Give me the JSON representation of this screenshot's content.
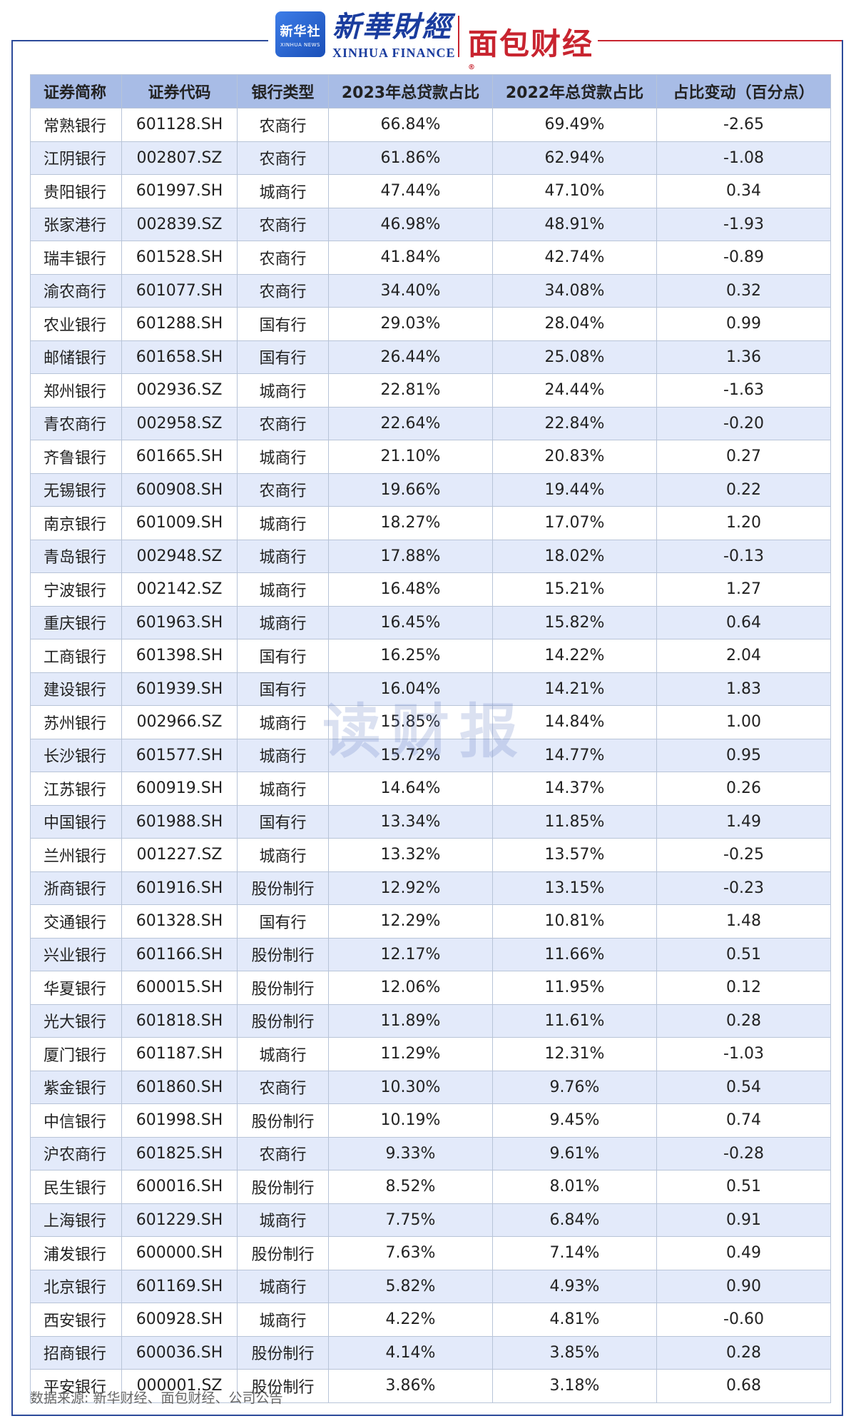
{
  "header": {
    "xinhua_badge_cn": "新华社",
    "xinhua_badge_en": "XINHUA NEWS",
    "xinhua_title_cn": "新華財經",
    "xinhua_title_en": "XINHUA FINANCE",
    "mianbao_logo": "面包财经",
    "registered_mark": "®"
  },
  "table": {
    "columns": [
      "证券简称",
      "证券代码",
      "银行类型",
      "2023年总贷款占比",
      "2022年总贷款占比",
      "占比变动（百分点）"
    ],
    "rows": [
      [
        "常熟银行",
        "601128.SH",
        "农商行",
        "66.84%",
        "69.49%",
        "-2.65"
      ],
      [
        "江阴银行",
        "002807.SZ",
        "农商行",
        "61.86%",
        "62.94%",
        "-1.08"
      ],
      [
        "贵阳银行",
        "601997.SH",
        "城商行",
        "47.44%",
        "47.10%",
        "0.34"
      ],
      [
        "张家港行",
        "002839.SZ",
        "农商行",
        "46.98%",
        "48.91%",
        "-1.93"
      ],
      [
        "瑞丰银行",
        "601528.SH",
        "农商行",
        "41.84%",
        "42.74%",
        "-0.89"
      ],
      [
        "渝农商行",
        "601077.SH",
        "农商行",
        "34.40%",
        "34.08%",
        "0.32"
      ],
      [
        "农业银行",
        "601288.SH",
        "国有行",
        "29.03%",
        "28.04%",
        "0.99"
      ],
      [
        "邮储银行",
        "601658.SH",
        "国有行",
        "26.44%",
        "25.08%",
        "1.36"
      ],
      [
        "郑州银行",
        "002936.SZ",
        "城商行",
        "22.81%",
        "24.44%",
        "-1.63"
      ],
      [
        "青农商行",
        "002958.SZ",
        "农商行",
        "22.64%",
        "22.84%",
        "-0.20"
      ],
      [
        "齐鲁银行",
        "601665.SH",
        "城商行",
        "21.10%",
        "20.83%",
        "0.27"
      ],
      [
        "无锡银行",
        "600908.SH",
        "农商行",
        "19.66%",
        "19.44%",
        "0.22"
      ],
      [
        "南京银行",
        "601009.SH",
        "城商行",
        "18.27%",
        "17.07%",
        "1.20"
      ],
      [
        "青岛银行",
        "002948.SZ",
        "城商行",
        "17.88%",
        "18.02%",
        "-0.13"
      ],
      [
        "宁波银行",
        "002142.SZ",
        "城商行",
        "16.48%",
        "15.21%",
        "1.27"
      ],
      [
        "重庆银行",
        "601963.SH",
        "城商行",
        "16.45%",
        "15.82%",
        "0.64"
      ],
      [
        "工商银行",
        "601398.SH",
        "国有行",
        "16.25%",
        "14.22%",
        "2.04"
      ],
      [
        "建设银行",
        "601939.SH",
        "国有行",
        "16.04%",
        "14.21%",
        "1.83"
      ],
      [
        "苏州银行",
        "002966.SZ",
        "城商行",
        "15.85%",
        "14.84%",
        "1.00"
      ],
      [
        "长沙银行",
        "601577.SH",
        "城商行",
        "15.72%",
        "14.77%",
        "0.95"
      ],
      [
        "江苏银行",
        "600919.SH",
        "城商行",
        "14.64%",
        "14.37%",
        "0.26"
      ],
      [
        "中国银行",
        "601988.SH",
        "国有行",
        "13.34%",
        "11.85%",
        "1.49"
      ],
      [
        "兰州银行",
        "001227.SZ",
        "城商行",
        "13.32%",
        "13.57%",
        "-0.25"
      ],
      [
        "浙商银行",
        "601916.SH",
        "股份制行",
        "12.92%",
        "13.15%",
        "-0.23"
      ],
      [
        "交通银行",
        "601328.SH",
        "国有行",
        "12.29%",
        "10.81%",
        "1.48"
      ],
      [
        "兴业银行",
        "601166.SH",
        "股份制行",
        "12.17%",
        "11.66%",
        "0.51"
      ],
      [
        "华夏银行",
        "600015.SH",
        "股份制行",
        "12.06%",
        "11.95%",
        "0.12"
      ],
      [
        "光大银行",
        "601818.SH",
        "股份制行",
        "11.89%",
        "11.61%",
        "0.28"
      ],
      [
        "厦门银行",
        "601187.SH",
        "城商行",
        "11.29%",
        "12.31%",
        "-1.03"
      ],
      [
        "紫金银行",
        "601860.SH",
        "农商行",
        "10.30%",
        "9.76%",
        "0.54"
      ],
      [
        "中信银行",
        "601998.SH",
        "股份制行",
        "10.19%",
        "9.45%",
        "0.74"
      ],
      [
        "沪农商行",
        "601825.SH",
        "农商行",
        "9.33%",
        "9.61%",
        "-0.28"
      ],
      [
        "民生银行",
        "600016.SH",
        "股份制行",
        "8.52%",
        "8.01%",
        "0.51"
      ],
      [
        "上海银行",
        "601229.SH",
        "城商行",
        "7.75%",
        "6.84%",
        "0.91"
      ],
      [
        "浦发银行",
        "600000.SH",
        "股份制行",
        "7.63%",
        "7.14%",
        "0.49"
      ],
      [
        "北京银行",
        "601169.SH",
        "城商行",
        "5.82%",
        "4.93%",
        "0.90"
      ],
      [
        "西安银行",
        "600928.SH",
        "城商行",
        "4.22%",
        "4.81%",
        "-0.60"
      ],
      [
        "招商银行",
        "600036.SH",
        "股份制行",
        "4.14%",
        "3.85%",
        "0.28"
      ],
      [
        "平安银行",
        "000001.SZ",
        "股份制行",
        "3.86%",
        "3.18%",
        "0.68"
      ]
    ]
  },
  "watermark": "读财报",
  "source": "数据来源: 新华财经、面包财经、公司公告",
  "colors": {
    "header_bg": "#a8bce6",
    "stripe_bg": "#e3eafa",
    "brand_blue": "#2c4a9a",
    "brand_red": "#c8242f"
  }
}
